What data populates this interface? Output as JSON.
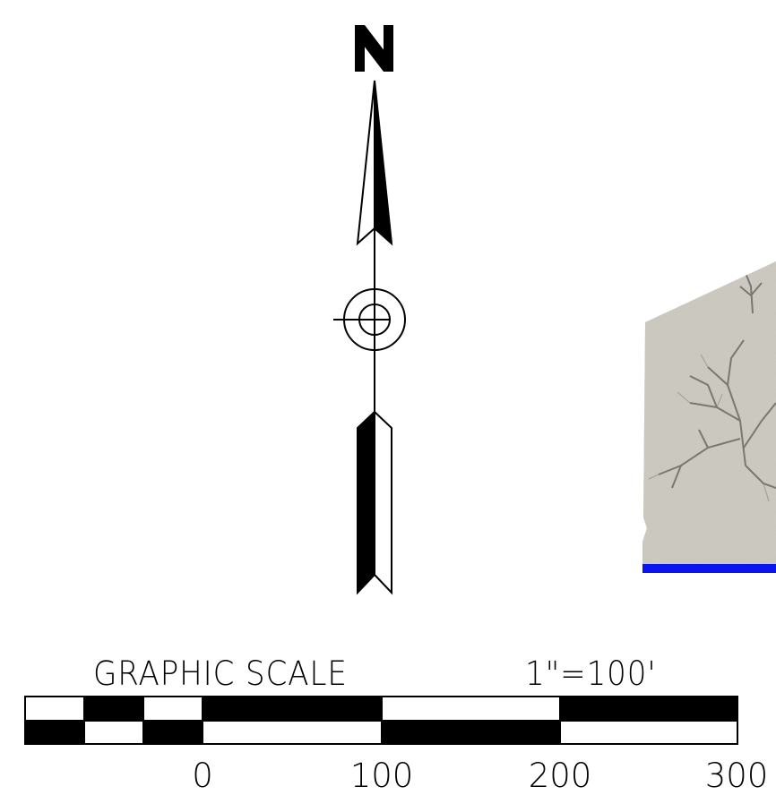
{
  "north_arrow": {
    "letter": "N"
  },
  "aerial_photo": {
    "description_icon": "aerial-image-icon",
    "boundary_color": "#0a14f0"
  },
  "graphic_scale": {
    "title": "GRAPHIC SCALE",
    "ratio": "1\"=100'",
    "units": "feet",
    "ticks": [
      "0",
      "100",
      "200",
      "300"
    ]
  },
  "colors": {
    "ink": "#000000",
    "paper": "#ffffff",
    "photo_base": "#d6d3cc"
  }
}
